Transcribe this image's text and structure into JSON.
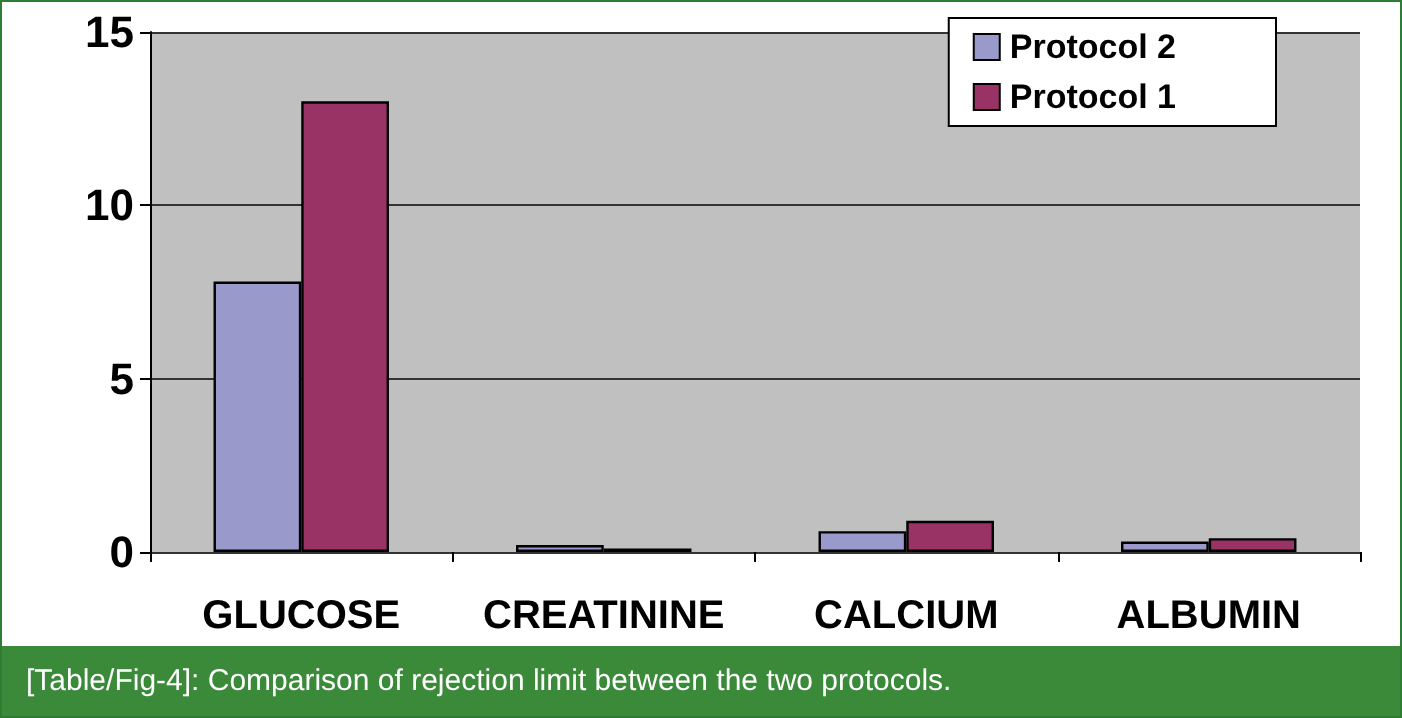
{
  "chart_data": {
    "type": "bar",
    "categories": [
      "GLUCOSE",
      "CREATININE",
      "CALCIUM",
      "ALBUMIN"
    ],
    "series": [
      {
        "name": "Protocol 2",
        "color": "#9999cc",
        "values": [
          7.8,
          0.2,
          0.6,
          0.3
        ]
      },
      {
        "name": "Protocol 1",
        "color": "#993366",
        "values": [
          13.0,
          0.1,
          0.9,
          0.4
        ]
      }
    ],
    "ylim": [
      0,
      15
    ],
    "yticks": [
      0,
      5,
      10,
      15
    ],
    "grid": "y",
    "legend": "top right",
    "annotations": [
      "[Table/Fig-4]: Comparison of rejection limit between the two protocols."
    ]
  }
}
